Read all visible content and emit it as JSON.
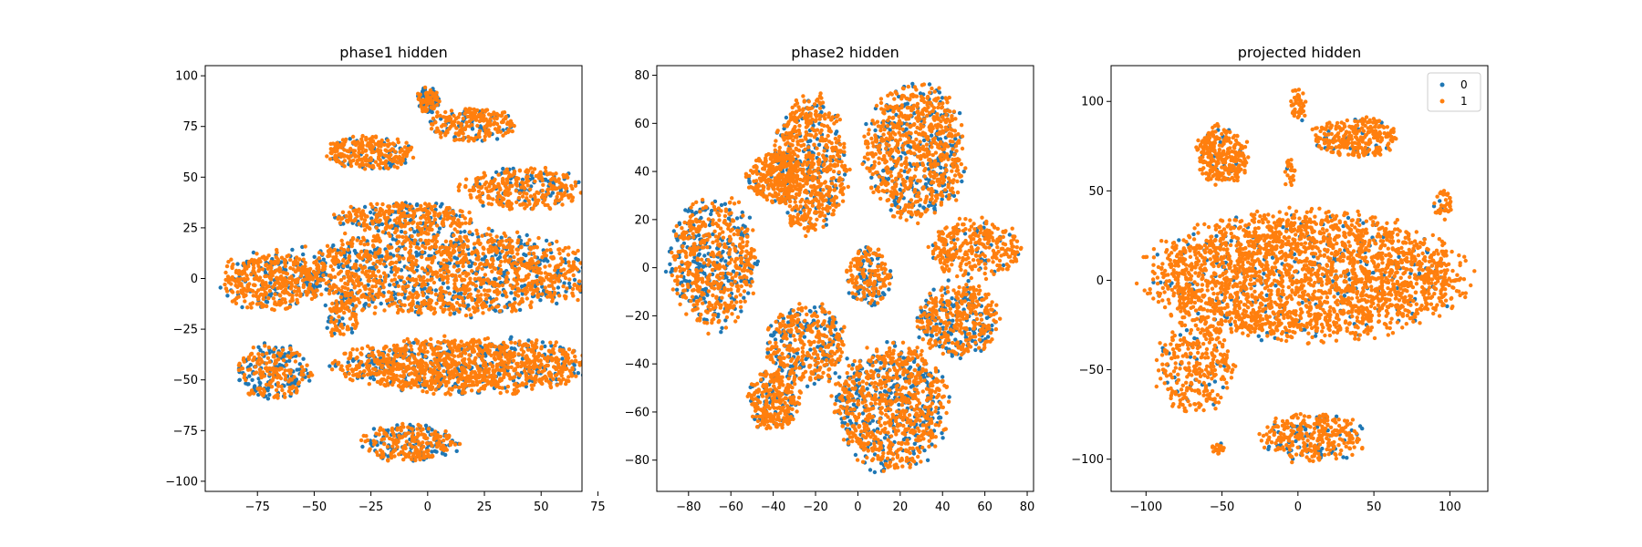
{
  "chart_data": [
    {
      "type": "scatter",
      "title": "phase1 hidden",
      "xlim": [
        -98,
        68
      ],
      "ylim": [
        -105,
        105
      ],
      "xticks": [
        -75,
        -50,
        -25,
        0,
        25,
        50,
        75
      ],
      "yticks": [
        -100,
        -75,
        -50,
        -25,
        0,
        25,
        50,
        75,
        100
      ],
      "xtick_labels": [
        "−75",
        "−50",
        "−25",
        "0",
        "25",
        "50",
        "75"
      ],
      "ytick_labels": [
        "−100",
        "−75",
        "−50",
        "−25",
        "0",
        "25",
        "50",
        "75",
        "100"
      ],
      "legend": false,
      "clusters": [
        {
          "cx": 0,
          "cy": 88,
          "rx": 5,
          "ry": 6,
          "n": 120,
          "blue": 0.55
        },
        {
          "cx": 20,
          "cy": 76,
          "rx": 19,
          "ry": 8,
          "n": 240,
          "blue": 0.22
        },
        {
          "cx": -25,
          "cy": 62,
          "rx": 19,
          "ry": 8,
          "n": 280,
          "blue": 0.18
        },
        {
          "cx": 42,
          "cy": 44,
          "rx": 26,
          "ry": 10,
          "n": 340,
          "blue": 0.22
        },
        {
          "cx": -10,
          "cy": 30,
          "rx": 30,
          "ry": 7,
          "n": 320,
          "blue": 0.3
        },
        {
          "cx": 5,
          "cy": 3,
          "rx": 67,
          "ry": 20,
          "n": 1700,
          "blue": 0.32
        },
        {
          "cx": -70,
          "cy": -1,
          "rx": 20,
          "ry": 14,
          "n": 380,
          "blue": 0.2
        },
        {
          "cx": -68,
          "cy": -46,
          "rx": 16,
          "ry": 13,
          "n": 300,
          "blue": 0.45
        },
        {
          "cx": 18,
          "cy": -43,
          "rx": 56,
          "ry": 13,
          "n": 1300,
          "blue": 0.22
        },
        {
          "cx": -38,
          "cy": -20,
          "rx": 7,
          "ry": 10,
          "n": 90,
          "blue": 0.3
        },
        {
          "cx": -8,
          "cy": -81,
          "rx": 21,
          "ry": 9,
          "n": 300,
          "blue": 0.4
        }
      ],
      "series": [
        {
          "name": "0",
          "color": "#1f77b4"
        },
        {
          "name": "1",
          "color": "#ff7f0e"
        }
      ]
    },
    {
      "type": "scatter",
      "title": "phase2 hidden",
      "xlim": [
        -95,
        83
      ],
      "ylim": [
        -93,
        84
      ],
      "xticks": [
        -80,
        -60,
        -40,
        -20,
        0,
        20,
        40,
        60,
        80
      ],
      "yticks": [
        -80,
        -60,
        -40,
        -20,
        0,
        20,
        40,
        60,
        80
      ],
      "xtick_labels": [
        "−80",
        "−60",
        "−40",
        "−20",
        "0",
        "20",
        "40",
        "60",
        "80"
      ],
      "ytick_labels": [
        "−80",
        "−60",
        "−40",
        "−20",
        "0",
        "20",
        "40",
        "60",
        "80"
      ],
      "legend": false,
      "clusters": [
        {
          "cx": -22,
          "cy": 43,
          "rx": 17,
          "ry": 27,
          "n": 700,
          "blue": 0.2
        },
        {
          "cx": -40,
          "cy": 38,
          "rx": 12,
          "ry": 11,
          "n": 250,
          "blue": 0.15
        },
        {
          "cx": 27,
          "cy": 48,
          "rx": 23,
          "ry": 27,
          "n": 900,
          "blue": 0.28
        },
        {
          "cx": -68,
          "cy": 2,
          "rx": 20,
          "ry": 26,
          "n": 700,
          "blue": 0.35
        },
        {
          "cx": 5,
          "cy": -4,
          "rx": 10,
          "ry": 12,
          "n": 200,
          "blue": 0.25
        },
        {
          "cx": 55,
          "cy": 8,
          "rx": 21,
          "ry": 12,
          "n": 320,
          "blue": 0.12
        },
        {
          "cx": 47,
          "cy": -22,
          "rx": 18,
          "ry": 15,
          "n": 450,
          "blue": 0.35
        },
        {
          "cx": -24,
          "cy": -32,
          "rx": 18,
          "ry": 16,
          "n": 450,
          "blue": 0.35
        },
        {
          "cx": 16,
          "cy": -58,
          "rx": 26,
          "ry": 25,
          "n": 1000,
          "blue": 0.32
        },
        {
          "cx": -40,
          "cy": -55,
          "rx": 12,
          "ry": 12,
          "n": 300,
          "blue": 0.22
        }
      ],
      "series": [
        {
          "name": "0",
          "color": "#1f77b4"
        },
        {
          "name": "1",
          "color": "#ff7f0e"
        }
      ]
    },
    {
      "type": "scatter",
      "title": "projected hidden",
      "xlim": [
        -123,
        125
      ],
      "ylim": [
        -118,
        120
      ],
      "xticks": [
        -100,
        -50,
        0,
        50,
        100
      ],
      "yticks": [
        -100,
        -50,
        0,
        50,
        100
      ],
      "xtick_labels": [
        "−100",
        "−50",
        "0",
        "50",
        "100"
      ],
      "ytick_labels": [
        "−100",
        "−50",
        "0",
        "50",
        "100"
      ],
      "legend": true,
      "legend_position": "top-right",
      "clusters": [
        {
          "cx": 5,
          "cy": 2,
          "rx": 100,
          "ry": 34,
          "n": 2600,
          "blue": 0.08
        },
        {
          "cx": -50,
          "cy": 70,
          "rx": 16,
          "ry": 16,
          "n": 300,
          "blue": 0.08
        },
        {
          "cx": 38,
          "cy": 80,
          "rx": 27,
          "ry": 11,
          "n": 280,
          "blue": 0.08
        },
        {
          "cx": 0,
          "cy": 98,
          "rx": 5,
          "ry": 9,
          "n": 45,
          "blue": 0.05
        },
        {
          "cx": -68,
          "cy": -48,
          "rx": 24,
          "ry": 24,
          "n": 320,
          "blue": 0.1
        },
        {
          "cx": 10,
          "cy": -88,
          "rx": 33,
          "ry": 13,
          "n": 330,
          "blue": 0.15
        },
        {
          "cx": 95,
          "cy": 42,
          "rx": 6,
          "ry": 8,
          "n": 40,
          "blue": 0.05
        },
        {
          "cx": -52,
          "cy": -94,
          "rx": 5,
          "ry": 3,
          "n": 20,
          "blue": 0.05
        },
        {
          "cx": -5,
          "cy": 60,
          "rx": 4,
          "ry": 8,
          "n": 25,
          "blue": 0.05
        }
      ],
      "series": [
        {
          "name": "0",
          "color": "#1f77b4"
        },
        {
          "name": "1",
          "color": "#ff7f0e"
        }
      ]
    }
  ]
}
